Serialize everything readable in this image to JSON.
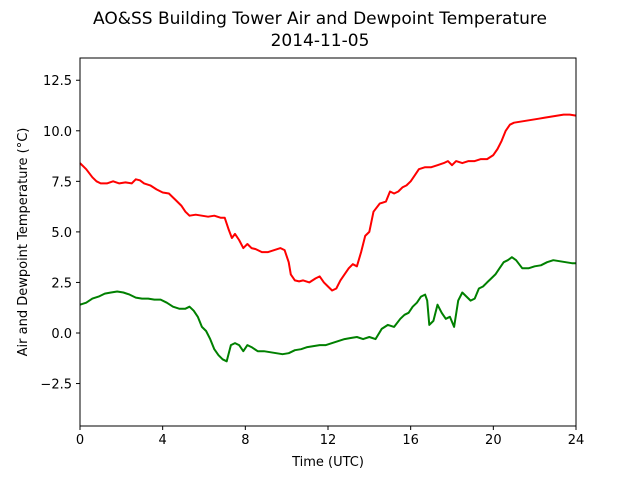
{
  "chart_data": {
    "type": "line",
    "title": "AO&SS Building Tower Air and Dewpoint Temperature",
    "subtitle": "2014-11-05",
    "xlabel": "Time (UTC)",
    "ylabel": "Air and Dewpoint Temperature (°C)",
    "xlim": [
      0,
      24
    ],
    "ylim": [
      -4.6,
      13.6
    ],
    "xticks": [
      0,
      4,
      8,
      12,
      16,
      20,
      24
    ],
    "xtick_labels": [
      "0",
      "4",
      "8",
      "12",
      "16",
      "20",
      "24"
    ],
    "yticks": [
      -2.5,
      0,
      2.5,
      5,
      7.5,
      10,
      12.5
    ],
    "ytick_labels": [
      "−2.5",
      "0.0",
      "2.5",
      "5.0",
      "7.5",
      "10.0",
      "12.5"
    ],
    "grid": false,
    "legend": "none",
    "series": [
      {
        "color": "#ff0000",
        "x": [
          0,
          0.3,
          0.6,
          0.8,
          1.0,
          1.3,
          1.6,
          1.9,
          2.2,
          2.5,
          2.7,
          2.9,
          3.1,
          3.4,
          3.7,
          4.0,
          4.3,
          4.6,
          4.9,
          5.1,
          5.3,
          5.6,
          5.9,
          6.2,
          6.5,
          6.8,
          7.0,
          7.2,
          7.35,
          7.5,
          7.7,
          7.9,
          8.1,
          8.3,
          8.5,
          8.8,
          9.1,
          9.4,
          9.7,
          9.9,
          10.1,
          10.2,
          10.4,
          10.6,
          10.8,
          11.1,
          11.4,
          11.6,
          11.8,
          12.0,
          12.2,
          12.4,
          12.6,
          12.8,
          13.0,
          13.2,
          13.4,
          13.6,
          13.8,
          14.0,
          14.2,
          14.5,
          14.8,
          15.0,
          15.2,
          15.4,
          15.6,
          15.8,
          16.0,
          16.2,
          16.4,
          16.7,
          17.0,
          17.3,
          17.6,
          17.8,
          18.0,
          18.2,
          18.5,
          18.8,
          19.1,
          19.4,
          19.7,
          20.0,
          20.2,
          20.4,
          20.6,
          20.8,
          21.0,
          21.3,
          21.6,
          21.9,
          22.2,
          22.5,
          22.8,
          23.1,
          23.4,
          23.7,
          24.0
        ],
        "y": [
          8.4,
          8.1,
          7.7,
          7.5,
          7.4,
          7.4,
          7.5,
          7.4,
          7.45,
          7.4,
          7.6,
          7.55,
          7.4,
          7.3,
          7.1,
          6.95,
          6.9,
          6.6,
          6.3,
          6.0,
          5.8,
          5.85,
          5.8,
          5.75,
          5.8,
          5.7,
          5.7,
          5.1,
          4.7,
          4.9,
          4.6,
          4.2,
          4.4,
          4.2,
          4.15,
          4.0,
          4.0,
          4.1,
          4.2,
          4.1,
          3.5,
          2.9,
          2.6,
          2.55,
          2.6,
          2.5,
          2.7,
          2.8,
          2.5,
          2.3,
          2.1,
          2.2,
          2.6,
          2.9,
          3.2,
          3.4,
          3.3,
          4.0,
          4.8,
          5.0,
          6.0,
          6.4,
          6.5,
          7.0,
          6.9,
          7.0,
          7.2,
          7.3,
          7.5,
          7.8,
          8.1,
          8.2,
          8.2,
          8.3,
          8.4,
          8.5,
          8.3,
          8.5,
          8.4,
          8.5,
          8.5,
          8.6,
          8.6,
          8.8,
          9.1,
          9.5,
          10.0,
          10.3,
          10.4,
          10.45,
          10.5,
          10.55,
          10.6,
          10.65,
          10.7,
          10.75,
          10.8,
          10.8,
          10.75
        ]
      },
      {
        "color": "#008000",
        "x": [
          0,
          0.3,
          0.6,
          0.9,
          1.2,
          1.5,
          1.8,
          2.1,
          2.4,
          2.7,
          3.0,
          3.3,
          3.6,
          3.9,
          4.2,
          4.5,
          4.8,
          5.1,
          5.3,
          5.5,
          5.7,
          5.9,
          6.1,
          6.3,
          6.5,
          6.7,
          6.9,
          7.1,
          7.3,
          7.5,
          7.7,
          7.9,
          8.1,
          8.3,
          8.6,
          8.9,
          9.2,
          9.5,
          9.8,
          10.1,
          10.4,
          10.7,
          11.0,
          11.3,
          11.6,
          11.9,
          12.2,
          12.5,
          12.8,
          13.1,
          13.4,
          13.7,
          14.0,
          14.3,
          14.6,
          14.9,
          15.2,
          15.5,
          15.7,
          15.9,
          16.1,
          16.3,
          16.5,
          16.7,
          16.8,
          16.9,
          17.1,
          17.3,
          17.5,
          17.7,
          17.9,
          18.1,
          18.3,
          18.5,
          18.7,
          18.9,
          19.1,
          19.3,
          19.5,
          19.7,
          19.9,
          20.1,
          20.3,
          20.5,
          20.7,
          20.9,
          21.1,
          21.4,
          21.7,
          22.0,
          22.3,
          22.6,
          22.9,
          23.2,
          23.5,
          23.8,
          24.0
        ],
        "y": [
          1.4,
          1.5,
          1.7,
          1.8,
          1.95,
          2.0,
          2.05,
          2.0,
          1.9,
          1.75,
          1.7,
          1.7,
          1.65,
          1.65,
          1.5,
          1.3,
          1.2,
          1.2,
          1.3,
          1.1,
          0.8,
          0.3,
          0.1,
          -0.3,
          -0.8,
          -1.1,
          -1.3,
          -1.4,
          -0.6,
          -0.5,
          -0.6,
          -0.9,
          -0.6,
          -0.7,
          -0.9,
          -0.9,
          -0.95,
          -1.0,
          -1.05,
          -1.0,
          -0.85,
          -0.8,
          -0.7,
          -0.65,
          -0.6,
          -0.6,
          -0.5,
          -0.4,
          -0.3,
          -0.25,
          -0.2,
          -0.3,
          -0.2,
          -0.3,
          0.2,
          0.4,
          0.3,
          0.7,
          0.9,
          1.0,
          1.3,
          1.5,
          1.8,
          1.9,
          1.6,
          0.4,
          0.6,
          1.4,
          1.0,
          0.7,
          0.8,
          0.3,
          1.6,
          2.0,
          1.8,
          1.6,
          1.7,
          2.2,
          2.3,
          2.5,
          2.7,
          2.9,
          3.2,
          3.5,
          3.6,
          3.75,
          3.6,
          3.2,
          3.2,
          3.3,
          3.35,
          3.5,
          3.6,
          3.55,
          3.5,
          3.45,
          3.45
        ]
      }
    ]
  }
}
